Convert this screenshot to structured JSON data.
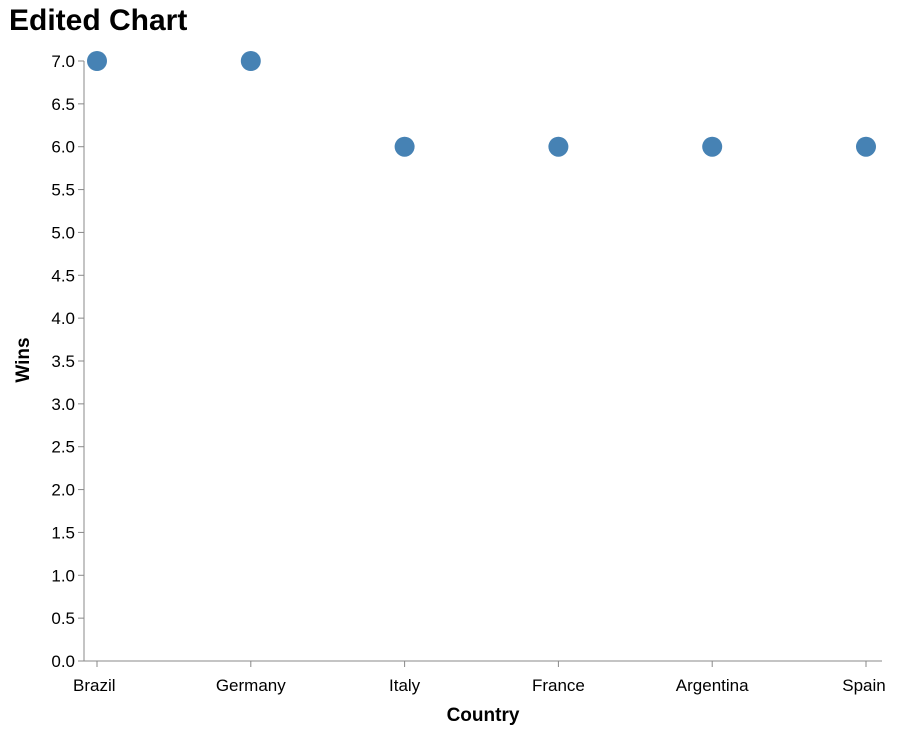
{
  "chart_data": {
    "type": "scatter",
    "title": "Edited Chart",
    "xlabel": "Country",
    "ylabel": "Wins",
    "categories": [
      "Brazil",
      "Germany",
      "Italy",
      "France",
      "Argentina",
      "Spain"
    ],
    "values": [
      7,
      7,
      6,
      6,
      6,
      6
    ],
    "ylim": [
      0,
      7
    ],
    "y_ticks": [
      "0.0",
      "0.5",
      "1.0",
      "1.5",
      "2.0",
      "2.5",
      "3.0",
      "3.5",
      "4.0",
      "4.5",
      "5.0",
      "5.5",
      "6.0",
      "6.5",
      "7.0"
    ],
    "grid": false,
    "marker_color": "#4682b4"
  }
}
